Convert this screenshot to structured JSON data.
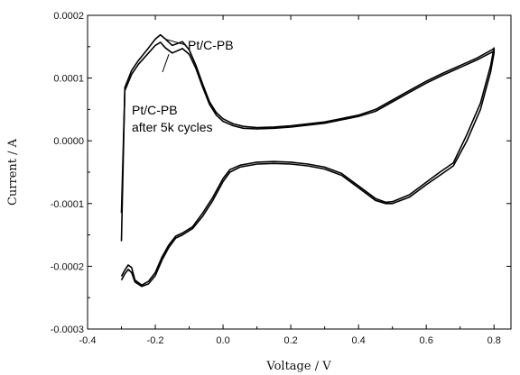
{
  "chart_data": {
    "type": "line",
    "title": "",
    "xlabel": "Voltage / V",
    "ylabel": "Current / A",
    "xlim": [
      -0.4,
      0.85
    ],
    "ylim": [
      -0.0003,
      0.0002
    ],
    "x_ticks": [
      -0.4,
      -0.2,
      0.0,
      0.2,
      0.4,
      0.6,
      0.8
    ],
    "x_tick_labels": [
      "-0.4",
      "-0.2",
      "0.0",
      "0.2",
      "0.4",
      "0.6",
      "0.8"
    ],
    "y_ticks": [
      -0.0003,
      -0.0002,
      -0.0001,
      0.0,
      0.0001,
      0.0002
    ],
    "y_tick_labels": [
      "-0.0003",
      "-0.0002",
      "-0.0001",
      "0.0000",
      "0.0001",
      "0.0002"
    ],
    "grid": false,
    "line_color": "#000000",
    "series": [
      {
        "name": "Pt/C-PB",
        "x": [
          -0.3,
          -0.29,
          -0.27,
          -0.25,
          -0.22,
          -0.2,
          -0.185,
          -0.17,
          -0.15,
          -0.12,
          -0.1,
          -0.08,
          -0.06,
          -0.04,
          -0.02,
          0.0,
          0.03,
          0.06,
          0.1,
          0.15,
          0.2,
          0.3,
          0.4,
          0.45,
          0.5,
          0.55,
          0.6,
          0.65,
          0.7,
          0.75,
          0.8,
          0.8,
          0.79,
          0.76,
          0.72,
          0.68,
          0.64,
          0.6,
          0.55,
          0.5,
          0.48,
          0.45,
          0.4,
          0.35,
          0.3,
          0.25,
          0.2,
          0.15,
          0.1,
          0.05,
          0.02,
          0.0,
          -0.03,
          -0.06,
          -0.09,
          -0.12,
          -0.14,
          -0.16,
          -0.18,
          -0.2,
          -0.22,
          -0.24,
          -0.26,
          -0.27,
          -0.28,
          -0.29,
          -0.3
        ],
        "y": [
          -0.00016,
          8.5e-05,
          0.000112,
          0.000128,
          0.000148,
          0.000162,
          0.000169,
          0.000162,
          0.000152,
          0.000158,
          0.000145,
          0.00012,
          9e-05,
          6.2e-05,
          4.5e-05,
          3.5e-05,
          2.7e-05,
          2.3e-05,
          2.1e-05,
          2.2e-05,
          2.4e-05,
          3e-05,
          4.1e-05,
          5e-05,
          6.5e-05,
          8e-05,
          9.5e-05,
          0.000108,
          0.00012,
          0.000132,
          0.000147,
          0.00014,
          0.00011,
          5e-05,
          0.0,
          -4e-05,
          -5.5e-05,
          -7e-05,
          -9e-05,
          -0.0001,
          -0.0001,
          -9.5e-05,
          -7.5e-05,
          -5.5e-05,
          -4.5e-05,
          -4e-05,
          -3.7e-05,
          -3.6e-05,
          -3.7e-05,
          -4.2e-05,
          -5e-05,
          -6.5e-05,
          -9.5e-05,
          -0.00012,
          -0.00014,
          -0.00015,
          -0.000155,
          -0.00017,
          -0.00019,
          -0.000215,
          -0.000228,
          -0.000232,
          -0.000225,
          -0.00021,
          -0.000205,
          -0.000212,
          -0.000222
        ]
      },
      {
        "name": "Pt/C-PB after 5k cycles",
        "x": [
          -0.3,
          -0.29,
          -0.27,
          -0.25,
          -0.22,
          -0.2,
          -0.185,
          -0.17,
          -0.15,
          -0.12,
          -0.1,
          -0.08,
          -0.06,
          -0.04,
          -0.02,
          0.0,
          0.03,
          0.06,
          0.1,
          0.15,
          0.2,
          0.3,
          0.4,
          0.45,
          0.5,
          0.55,
          0.6,
          0.65,
          0.7,
          0.75,
          0.8,
          0.8,
          0.79,
          0.76,
          0.72,
          0.68,
          0.64,
          0.6,
          0.55,
          0.5,
          0.48,
          0.45,
          0.4,
          0.35,
          0.3,
          0.25,
          0.2,
          0.15,
          0.1,
          0.05,
          0.02,
          0.0,
          -0.03,
          -0.06,
          -0.09,
          -0.12,
          -0.14,
          -0.16,
          -0.18,
          -0.2,
          -0.22,
          -0.24,
          -0.26,
          -0.27,
          -0.28,
          -0.29,
          -0.3
        ],
        "y": [
          -0.000115,
          8e-05,
          0.000106,
          0.000122,
          0.00014,
          0.000152,
          0.000157,
          0.000148,
          0.00014,
          0.000147,
          0.000138,
          0.000115,
          8.5e-05,
          5.8e-05,
          4.1e-05,
          3.1e-05,
          2.4e-05,
          2e-05,
          1.9e-05,
          2e-05,
          2.2e-05,
          2.8e-05,
          3.9e-05,
          4.7e-05,
          6.2e-05,
          7.7e-05,
          9.2e-05,
          0.000105,
          0.000117,
          0.000129,
          0.000143,
          0.000148,
          0.00012,
          6e-05,
          1e-05,
          -3.5e-05,
          -5e-05,
          -6.6e-05,
          -8.6e-05,
          -9.7e-05,
          -9.8e-05,
          -9.2e-05,
          -7.2e-05,
          -5.2e-05,
          -4.2e-05,
          -3.7e-05,
          -3.4e-05,
          -3.3e-05,
          -3.4e-05,
          -3.9e-05,
          -4.6e-05,
          -6e-05,
          -9e-05,
          -0.000115,
          -0.000137,
          -0.000147,
          -0.000152,
          -0.000166,
          -0.000185,
          -0.00021,
          -0.000224,
          -0.00023,
          -0.000222,
          -0.000202,
          -0.000198,
          -0.000206,
          -0.000216
        ]
      }
    ],
    "annotations": [
      {
        "text": "Pt/C-PB",
        "target_x": -0.17,
        "target_y": 0.000162
      },
      {
        "text": "Pt/C-PB",
        "target_x": -0.16,
        "target_y": 0.000138
      },
      {
        "text": "after 5k cycles"
      }
    ]
  }
}
